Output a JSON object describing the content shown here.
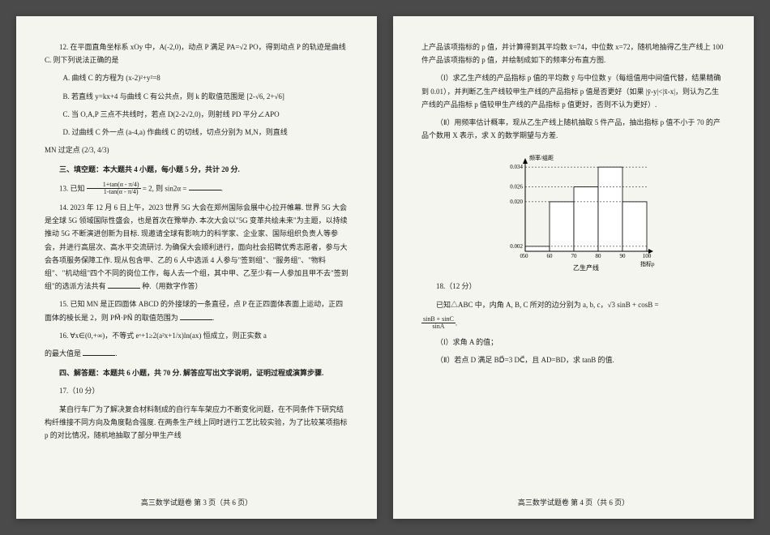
{
  "page3": {
    "q12": {
      "stem": "12. 在平面直角坐标系 xOy 中，A(-2,0)，动点 P 满足 PA=√2 PO，得到动点 P 的轨迹是曲线 C. 则下列说法正确的是",
      "optA": "A. 曲线 C 的方程为 (x-2)²+y²=8",
      "optB": "B. 若直线 y=kx+4 与曲线 C 有公共点，则 k 的取值范围是 [2-√6, 2+√6]",
      "optC": "C. 当 O,A,P 三点不共线时，若点 D(2-2√2,0)，则射线 PD 平分∠APO",
      "optD": "D. 过曲线 C 外一点 (a-4,a) 作曲线 C 的切线，切点分别为 M,N，则直线",
      "optD2": "MN 过定点 (2/3, 4/3)"
    },
    "section3": "三、填空题：本大题共 4 小题，每小题 5 分，共计 20 分.",
    "q13": "13. 已知",
    "q13b": "= 2, 则 sin2α = ",
    "q13num": "1+tan(α - π/4)",
    "q13den": "1-tan(α - π/4)",
    "q14": "14. 2023 年 12 月 6 日上午，2023 世界 5G 大会在郑州国际会展中心拉开帷幕. 世界 5G 大会是全球 5G 领域国际性盛会，也是首次在豫举办. 本次大会以\"5G 变革共绘未来\"为主题，以持续推动 5G 不断演进创新为目标. 现邀请全球有影响力的科学家、企业家、国际组织负责人等参会，并进行高层次、高水平交流研讨. 为确保大会顺利进行，面向社会招聘优秀志愿者，参与大会各项服务保障工作. 现从包含甲、乙的 6 人中选派 4 人参与\"签到组\"、\"服务组\"、\"物料组\"、\"机动组\"四个不同的岗位工作，每人去一个组，其中甲、乙至少有一人参加且甲不去\"签到组\"的选派方法共有",
    "q14b": "种.（用数字作答）",
    "q15": "15. 已知 MN 是正四面体 ABCD 的外接球的一条直径，点 P 在正四面体表面上运动，正四面体的棱长是 2，则 PM⃗·PN⃗ 的取值范围为",
    "q16": "16. ∀x∈(0,+∞)，不等式 eˣ+1≥2(a²x+1/x)ln(ax) 恒成立，则正实数 a",
    "q16b": "的最大值是",
    "section4": "四、解答题：本题共 6 小题，共 70 分. 解答应写出文字说明，证明过程或演算步骤.",
    "q17": "17.（10 分）",
    "q17body": "某自行车厂为了解决复合材料制成的自行车车架应力不断变化问题，在不同条件下研究结构纤维接不同方向及角度黏合强度. 在两条生产线上同时进行工艺比较实验，为了比较某项指标 p 的对比情况，随机地抽取了部分甲生产线",
    "footer": "高三数学试题卷 第 3 页（共 6 页）"
  },
  "page4": {
    "intro": "上产品该项指标的 p 值，并计算得到其平均数 x̄=74，中位数 x=72，随机地抽得乙生产线上 100 件产品该项指标的 p 值，并绘制成如下的频率分布直方图.",
    "part1": "（Ⅰ）求乙生产线的产品指标 p 值的平均数 ȳ 与中位数 y（每组值用中间值代替，结果精确到 0.01），并判断乙生产线较甲生产线的产品指标 p 值是否更好（如果 |ȳ-y|<|x̄-x|，则认为乙生产线的产品指标 p 值较甲生产线的产品指标 p 值更好，否则不认为更好）.",
    "part2": "（Ⅱ）用频率估计概率，现从乙生产线上随机抽取 5 件产品，抽出指标 p 值不小于 70 的产品个数用 X 表示，求 X 的数学期望与方差.",
    "chart": {
      "ylabel": "频率/组距",
      "xlabel": "乙生产线",
      "xlabel_right": "指标p",
      "xticks": [
        "0",
        "50",
        "60",
        "70",
        "80",
        "90",
        "100"
      ],
      "yticks": [
        "0.002",
        "0.020",
        "0.026",
        "0.034"
      ],
      "bars": [
        {
          "x": 50,
          "h": 0.002,
          "color": "#ffffff"
        },
        {
          "x": 60,
          "h": 0.02,
          "color": "#ffffff"
        },
        {
          "x": 70,
          "h": 0.026,
          "color": "#ffffff"
        },
        {
          "x": 80,
          "h": 0.034,
          "color": "#ffffff"
        },
        {
          "x": 90,
          "h": 0.02,
          "color": "#ffffff"
        }
      ],
      "axis_color": "#000000",
      "dash_color": "#000000",
      "bg": "#f5f5f0",
      "label_fontsize": 7
    },
    "q18": "18.（12 分）",
    "q18body": "已知△ABC 中，内角 A, B, C 所对的边分别为 a, b, c，√3 sinB + cosB =",
    "q18frac_num": "sinB + sinC",
    "q18frac_den": "sinA",
    "q18p1": "（Ⅰ）求角 A 的值；",
    "q18p2": "（Ⅱ）若点 D 满足 BD⃗=3 DC⃗，且 AD=BD，求 tanB 的值.",
    "footer": "高三数学试题卷 第 4 页（共 6 页）"
  }
}
